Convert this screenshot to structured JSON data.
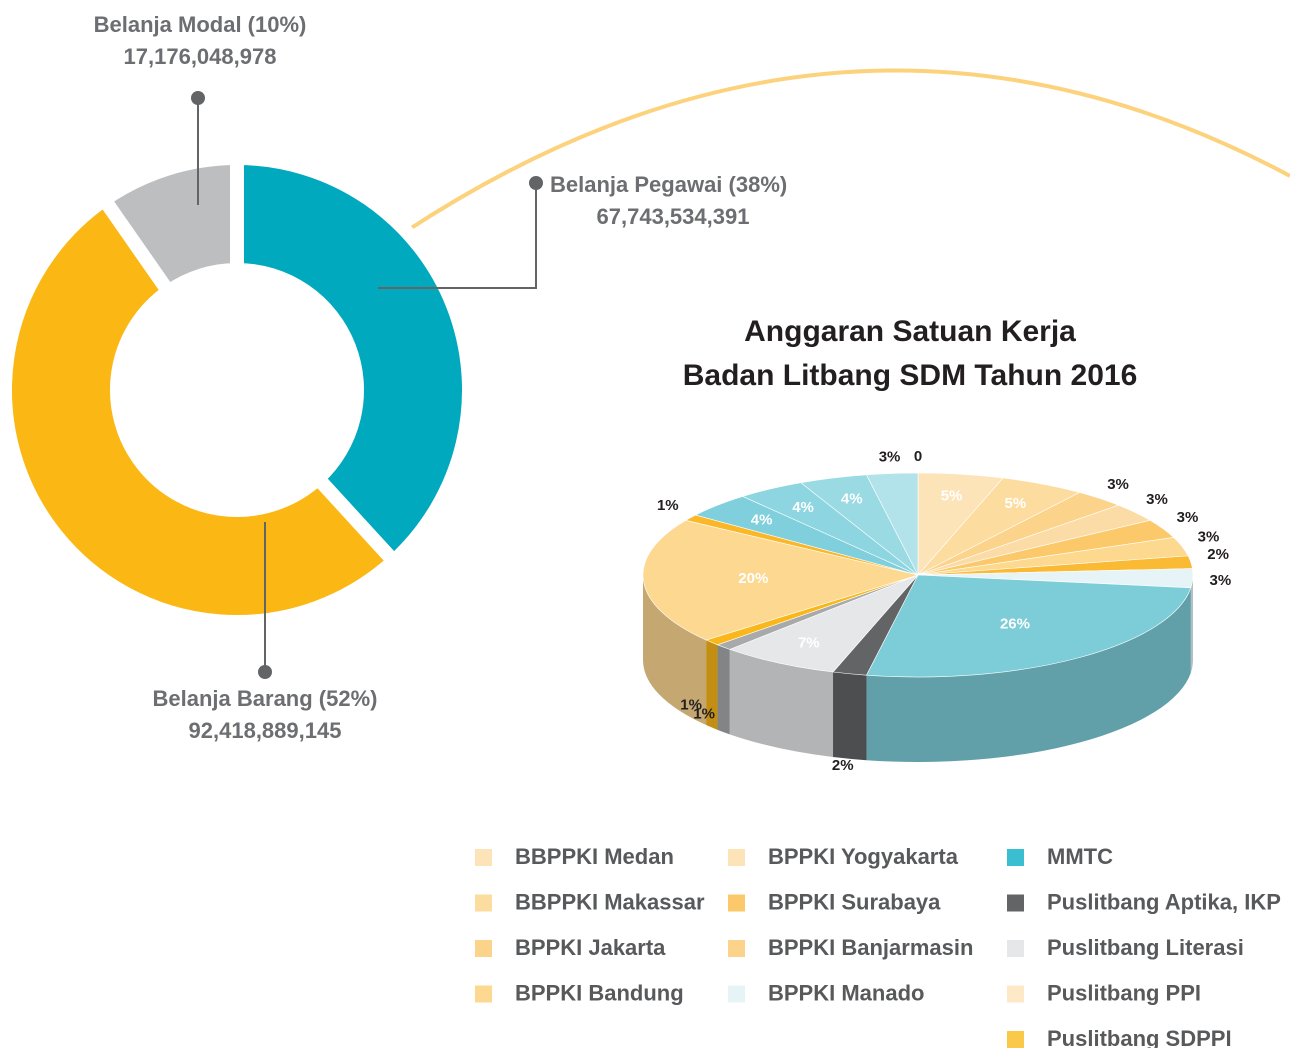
{
  "chart_data": [
    {
      "type": "donut",
      "categories": [
        "Belanja Pegawai (38%)",
        "Belanja Barang (52%)",
        "Belanja Modal (10%)"
      ],
      "values": [
        67743534391,
        92418889145,
        17176048978
      ],
      "value_labels": [
        "67,743,534,391",
        "92,418,889,145",
        "17,176,048,978"
      ],
      "colors": [
        "#00a9bd",
        "#fbb814",
        "#bcbec0"
      ]
    },
    {
      "type": "pie3d",
      "title": [
        "Anggaran Satuan Kerja",
        "Badan Litbang SDM Tahun 2016"
      ],
      "values": [
        0,
        5,
        5,
        3,
        3,
        3,
        3,
        2,
        3,
        26,
        2,
        7,
        1,
        1,
        20,
        1,
        4,
        4,
        4,
        3
      ],
      "value_labels": [
        null,
        "5%",
        "5%",
        "3%",
        "3%",
        "3%",
        "3%",
        "2%",
        "3%",
        "26%",
        "2%",
        "7%",
        "1%",
        "1%",
        "20%",
        "1%",
        "4%",
        "4%",
        "4%",
        "3%"
      ],
      "colors": [
        "#fde8c8",
        "#fde3b8",
        "#fddca0",
        "#fcd38a",
        "#fbdca6",
        "#fbc96a",
        "#fcd98f",
        "#fbba33",
        "#e6f4f7",
        "#7dcdd9",
        "#636466",
        "#e6e7e8",
        "#a8a9ab",
        "#f9b71a",
        "#fdd891",
        "#fbb726",
        "#7fd0dc",
        "#8dd5e0",
        "#99dae3",
        "#b3e3ea"
      ],
      "legend": [
        {
          "name": "BBPPKI Medan",
          "color": "#fde3b8"
        },
        {
          "name": "BBPPKI Makassar",
          "color": "#fddca0"
        },
        {
          "name": "BPPKI Jakarta",
          "color": "#fcd38a"
        },
        {
          "name": "BPPKI Bandung",
          "color": "#fdd891"
        },
        {
          "name": "BPPKI Yogyakarta",
          "color": "#fde3b8"
        },
        {
          "name": "BPPKI Surabaya",
          "color": "#fbc96a"
        },
        {
          "name": "BPPKI Banjarmasin",
          "color": "#fcd38a"
        },
        {
          "name": "BPPKI Manado",
          "color": "#e6f4f7"
        },
        {
          "name": "MMTC",
          "color": "#3bbfd0"
        },
        {
          "name": "Puslitbang Aptika, IKP",
          "color": "#636466"
        },
        {
          "name": "Puslitbang Literasi",
          "color": "#e6e7e8"
        },
        {
          "name": "Puslitbang PPI",
          "color": "#fde8c8"
        },
        {
          "name": "Puslitbang SDPPI",
          "color": "#fbc94a"
        }
      ]
    }
  ]
}
